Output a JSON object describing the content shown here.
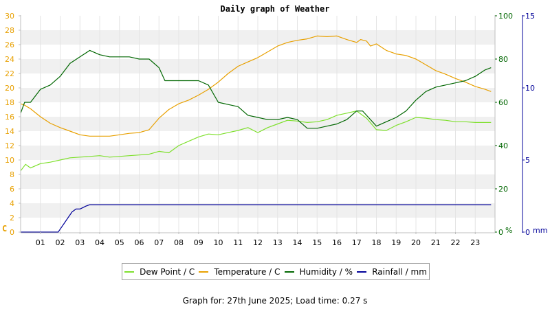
{
  "chart_data": {
    "type": "line",
    "title": "Daily graph of Weather",
    "footer": "Graph for: 27th June 2025; Load time: 0.27 s",
    "x_ticks": [
      "01",
      "02",
      "03",
      "04",
      "05",
      "06",
      "07",
      "08",
      "09",
      "10",
      "11",
      "12",
      "13",
      "14",
      "15",
      "16",
      "17",
      "18",
      "19",
      "20",
      "21",
      "22",
      "23"
    ],
    "x_range_hours": [
      0,
      24
    ],
    "left_axis": {
      "unit": "C",
      "range": [
        0,
        30
      ],
      "ticks": [
        0,
        2,
        4,
        6,
        8,
        10,
        12,
        14,
        16,
        18,
        20,
        22,
        24,
        26,
        28,
        30
      ],
      "color": "#e8a000"
    },
    "right_axis_1": {
      "unit": "%",
      "range": [
        0,
        100
      ],
      "ticks": [
        0,
        20,
        40,
        60,
        80,
        100
      ],
      "color": "#006600"
    },
    "right_axis_2": {
      "unit": "mm",
      "range": [
        0,
        15
      ],
      "ticks": [
        0,
        5,
        10,
        15
      ],
      "color": "#000099"
    },
    "grid": "horizontal bands",
    "legend_position": "bottom",
    "series": [
      {
        "name": "Dew Point / C",
        "axis": "left",
        "color": "#7ee02c",
        "x": [
          0,
          0.25,
          0.5,
          1,
          1.5,
          2,
          2.5,
          3,
          3.5,
          4,
          4.5,
          5,
          5.5,
          6,
          6.5,
          7,
          7.5,
          8,
          8.5,
          9,
          9.5,
          10,
          10.5,
          11,
          11.5,
          12,
          12.5,
          13,
          13.5,
          14,
          14.5,
          15,
          15.5,
          16,
          16.5,
          17,
          17.5,
          18,
          18.5,
          19,
          19.5,
          20,
          20.5,
          21,
          21.5,
          22,
          22.5,
          23,
          23.5,
          23.8
        ],
        "y": [
          8.5,
          9.4,
          8.9,
          9.5,
          9.7,
          10,
          10.3,
          10.4,
          10.5,
          10.6,
          10.4,
          10.5,
          10.6,
          10.7,
          10.8,
          11.2,
          11,
          12,
          12.6,
          13.2,
          13.6,
          13.5,
          13.8,
          14.1,
          14.5,
          13.8,
          14.5,
          15,
          15.5,
          15.4,
          15.2,
          15.3,
          15.6,
          16.2,
          16.5,
          16.8,
          15.8,
          14.2,
          14.1,
          14.8,
          15.3,
          15.9,
          15.8,
          15.6,
          15.5,
          15.3,
          15.3,
          15.2,
          15.2,
          15.2
        ]
      },
      {
        "name": "Temperature / C",
        "axis": "left",
        "color": "#e8a000",
        "x": [
          0,
          0.2,
          0.5,
          1,
          1.5,
          2,
          2.5,
          3,
          3.5,
          4,
          4.5,
          5,
          5.5,
          6,
          6.5,
          7,
          7.5,
          8,
          8.5,
          9,
          9.5,
          10,
          10.5,
          11,
          11.5,
          12,
          12.5,
          13,
          13.5,
          14,
          14.5,
          15,
          15.5,
          16,
          16.5,
          17,
          17.2,
          17.5,
          17.7,
          18,
          18.5,
          19,
          19.5,
          20,
          20.5,
          21,
          21.5,
          22,
          22.5,
          23,
          23.5,
          23.8
        ],
        "y": [
          17.8,
          17.6,
          17.1,
          16,
          15.1,
          14.5,
          14,
          13.5,
          13.3,
          13.3,
          13.3,
          13.5,
          13.7,
          13.8,
          14.2,
          15.8,
          17,
          17.8,
          18.3,
          19,
          19.8,
          20.8,
          22,
          23,
          23.6,
          24.2,
          25,
          25.8,
          26.3,
          26.6,
          26.8,
          27.2,
          27.1,
          27.2,
          26.7,
          26.3,
          26.7,
          26.5,
          25.8,
          26.1,
          25.2,
          24.7,
          24.5,
          24,
          23.2,
          22.4,
          21.9,
          21.3,
          20.8,
          20.2,
          19.8,
          19.5
        ]
      },
      {
        "name": "Humidity / %",
        "axis": "right_axis_1",
        "color": "#006600",
        "x": [
          0,
          0.2,
          0.5,
          1,
          1.5,
          2,
          2.5,
          3,
          3.5,
          4,
          4.5,
          5,
          5.5,
          6,
          6.5,
          7,
          7.3,
          7.5,
          8,
          8.5,
          9,
          9.5,
          10,
          10.5,
          11,
          11.5,
          12,
          12.5,
          13,
          13.5,
          14,
          14.5,
          15,
          15.5,
          16,
          16.5,
          17,
          17.3,
          17.6,
          18,
          18.5,
          19,
          19.5,
          20,
          20.5,
          21,
          21.5,
          22,
          22.5,
          23,
          23.5,
          23.8
        ],
        "y": [
          55,
          60,
          60,
          66,
          68,
          72,
          78,
          81,
          84,
          82,
          81,
          81,
          81,
          80,
          80,
          76,
          70,
          70,
          70,
          70,
          70,
          68,
          60,
          59,
          58,
          54,
          53,
          52,
          52,
          53,
          52,
          48,
          48,
          49,
          50,
          52,
          56,
          56,
          53,
          49,
          51,
          53,
          56,
          61,
          65,
          67,
          68,
          69,
          70,
          72,
          75,
          76
        ]
      },
      {
        "name": "Rainfall / mm",
        "axis": "right_axis_2",
        "color": "#000099",
        "x": [
          0,
          1.3,
          1.9,
          2.0,
          2.2,
          2.4,
          2.6,
          2.8,
          3.0,
          3.3,
          3.5,
          4,
          6,
          8,
          10,
          12,
          14,
          16,
          18,
          20,
          22,
          23.8
        ],
        "y": [
          0,
          0,
          0,
          0.2,
          0.6,
          1.0,
          1.4,
          1.6,
          1.6,
          1.8,
          1.9,
          1.9,
          1.9,
          1.9,
          1.9,
          1.9,
          1.9,
          1.9,
          1.9,
          1.9,
          1.9,
          1.9
        ]
      }
    ]
  }
}
